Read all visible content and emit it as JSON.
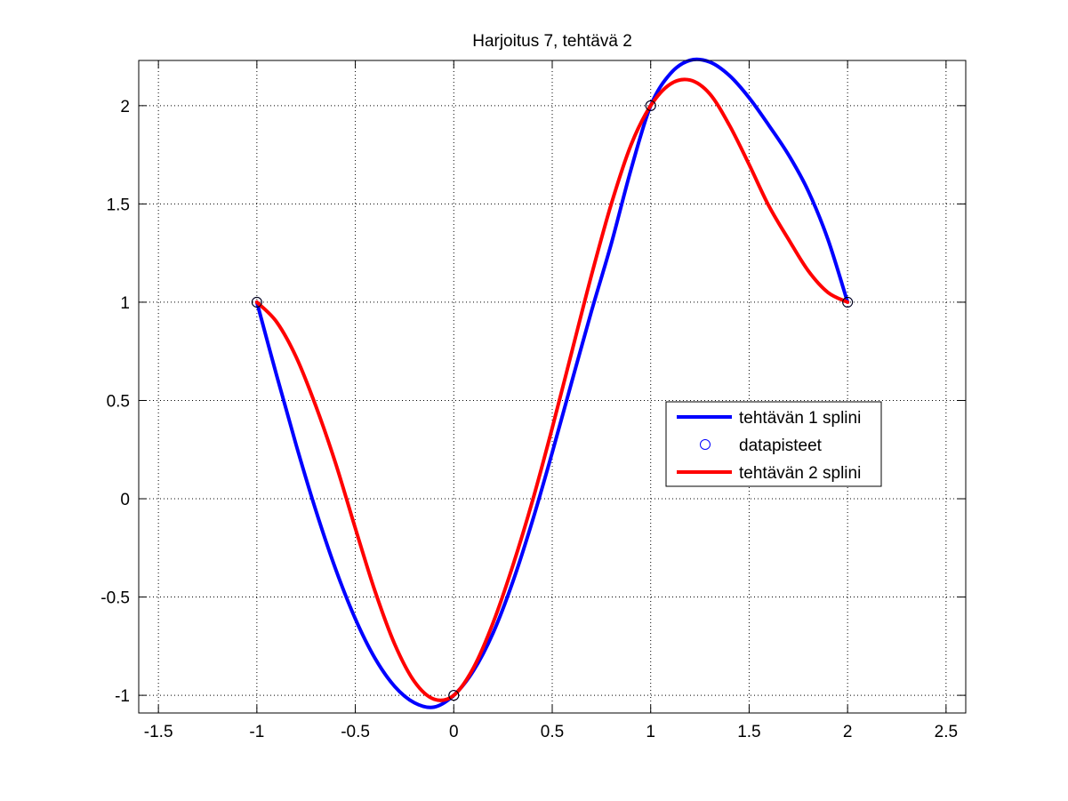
{
  "chart_data": {
    "type": "line",
    "title": "Harjoitus 7, tehtävä 2",
    "xlabel": "",
    "ylabel": "",
    "xlim": [
      -1.6,
      2.6
    ],
    "ylim": [
      -1.09,
      2.23
    ],
    "xticks": [
      -1.5,
      -1,
      -0.5,
      0,
      0.5,
      1,
      1.5,
      2,
      2.5
    ],
    "xtick_labels": [
      "-1.5",
      "-1",
      "-0.5",
      "0",
      "0.5",
      "1",
      "1.5",
      "2",
      "2.5"
    ],
    "yticks": [
      -1,
      -0.5,
      0,
      0.5,
      1,
      1.5,
      2
    ],
    "ytick_labels": [
      "-1",
      "-0.5",
      "0",
      "0.5",
      "1",
      "1.5",
      "2"
    ],
    "grid": true,
    "legend_position": "center-right",
    "series": [
      {
        "name": "tehtävän 1 splini",
        "style": "line",
        "color": "#0000ff",
        "x": [
          -1,
          -0.9,
          -0.8,
          -0.7,
          -0.6,
          -0.5,
          -0.4,
          -0.3,
          -0.2,
          -0.1,
          0,
          0.1,
          0.2,
          0.3,
          0.4,
          0.5,
          0.6,
          0.7,
          0.8,
          0.9,
          1,
          1.1,
          1.2,
          1.3,
          1.4,
          1.5,
          1.6,
          1.7,
          1.8,
          1.9,
          2
        ],
        "y": [
          1,
          0.629,
          0.272,
          -0.061,
          -0.358,
          -0.611,
          -0.812,
          -0.955,
          -1.038,
          -1.06,
          -1.0,
          -0.875,
          -0.682,
          -0.422,
          -0.111,
          0.235,
          0.598,
          0.957,
          1.298,
          1.675,
          2.0,
          2.163,
          2.231,
          2.222,
          2.153,
          2.04,
          1.9,
          1.75,
          1.566,
          1.32,
          1.0
        ]
      },
      {
        "name": "datapisteet",
        "style": "marker",
        "color": "#0000ff",
        "x": [
          -1,
          0,
          1,
          2
        ],
        "y": [
          1,
          -1,
          2,
          1
        ]
      },
      {
        "name": "tehtävän 2 splini",
        "style": "line",
        "color": "#ff0000",
        "x": [
          -1,
          -0.9,
          -0.8,
          -0.7,
          -0.6,
          -0.5,
          -0.4,
          -0.3,
          -0.2,
          -0.1,
          0,
          0.1,
          0.2,
          0.3,
          0.4,
          0.5,
          0.6,
          0.7,
          0.8,
          0.9,
          1,
          1.1,
          1.2,
          1.3,
          1.4,
          1.5,
          1.6,
          1.7,
          1.8,
          1.9,
          2
        ],
        "y": [
          1,
          0.9,
          0.72,
          0.47,
          0.18,
          -0.15,
          -0.47,
          -0.74,
          -0.93,
          -1.02,
          -1.0,
          -0.86,
          -0.63,
          -0.34,
          -0.01,
          0.36,
          0.75,
          1.14,
          1.5,
          1.8,
          2.0,
          2.11,
          2.13,
          2.06,
          1.9,
          1.7,
          1.49,
          1.32,
          1.16,
          1.05,
          1.0
        ]
      }
    ]
  }
}
